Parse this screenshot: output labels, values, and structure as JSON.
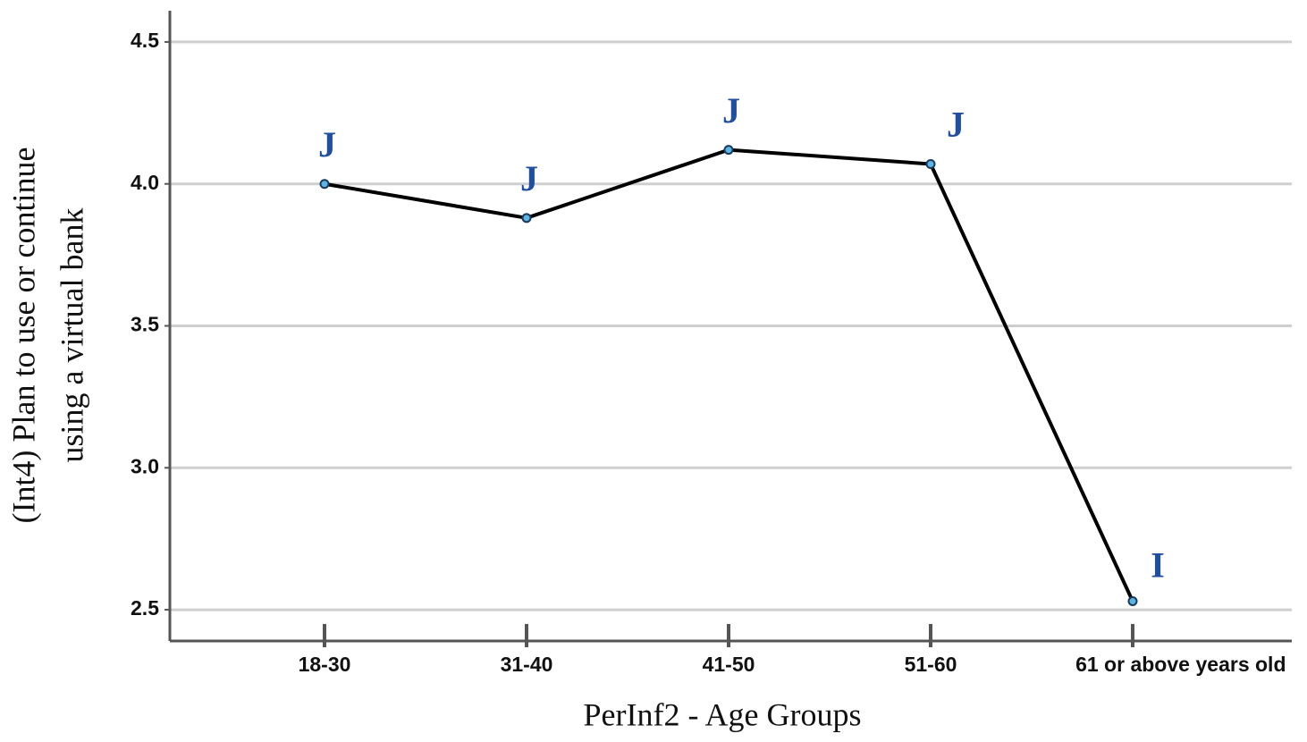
{
  "chart_data": {
    "type": "line",
    "xlabel": "PerInf2 - Age Groups",
    "ylabel": [
      "(Int4) Plan to use or continue",
      "using a virtual bank"
    ],
    "x_unit_note": "years old",
    "categories": [
      "18-30",
      "31-40",
      "41-50",
      "51-60",
      "61 or above"
    ],
    "series": [
      {
        "color": "#000000",
        "values": [
          4.0,
          3.88,
          4.12,
          4.07,
          2.53
        ]
      }
    ],
    "point_labels": [
      "J",
      "J",
      "J",
      "J",
      "I"
    ],
    "ylim": [
      2.39,
      4.61
    ],
    "yticks": [
      {
        "value": 2.5,
        "label": "2.5"
      },
      {
        "value": 3,
        "label": "3.0"
      },
      3.5,
      {
        "value": 4,
        "label": "4.0"
      },
      4.5
    ],
    "grid": true
  }
}
